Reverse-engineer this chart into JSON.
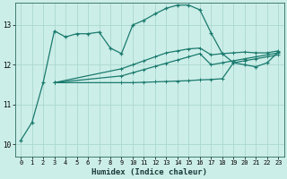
{
  "xlabel": "Humidex (Indice chaleur)",
  "bg_color": "#cceee8",
  "line_color": "#1a7a6e",
  "grid_color": "#aad8d0",
  "xlim": [
    -0.5,
    23.5
  ],
  "ylim": [
    9.7,
    13.55
  ],
  "yticks": [
    10,
    11,
    12,
    13
  ],
  "xticks": [
    0,
    1,
    2,
    3,
    4,
    5,
    6,
    7,
    8,
    9,
    10,
    11,
    12,
    13,
    14,
    15,
    16,
    17,
    18,
    19,
    20,
    21,
    22,
    23
  ],
  "line1_x": [
    0,
    1,
    2,
    3,
    4,
    5,
    6,
    7,
    8,
    9,
    10,
    11,
    12,
    13,
    14,
    15,
    16,
    17,
    18,
    19,
    20,
    21,
    22,
    23
  ],
  "line1_y": [
    10.1,
    10.55,
    11.55,
    12.85,
    12.7,
    12.78,
    12.78,
    12.82,
    12.42,
    12.28,
    13.0,
    13.12,
    13.28,
    13.42,
    13.5,
    13.5,
    13.38,
    12.8,
    12.28,
    12.05,
    12.0,
    11.95,
    12.05,
    12.32
  ],
  "line2_x": [
    3,
    9,
    10,
    11,
    12,
    13,
    14,
    15,
    16,
    17,
    18,
    19,
    20,
    21,
    22,
    23
  ],
  "line2_y": [
    11.55,
    11.55,
    11.55,
    11.56,
    11.57,
    11.58,
    11.59,
    11.6,
    11.62,
    11.63,
    11.65,
    12.05,
    12.1,
    12.15,
    12.2,
    12.25
  ],
  "line3_x": [
    3,
    9,
    10,
    11,
    12,
    13,
    14,
    15,
    16,
    17,
    18,
    19,
    20,
    21,
    22,
    23
  ],
  "line3_y": [
    11.55,
    11.72,
    11.8,
    11.88,
    11.96,
    12.04,
    12.12,
    12.2,
    12.28,
    12.0,
    12.05,
    12.1,
    12.15,
    12.2,
    12.25,
    12.3
  ],
  "line4_x": [
    3,
    9,
    10,
    11,
    12,
    13,
    14,
    15,
    16,
    17,
    18,
    19,
    20,
    21,
    22,
    23
  ],
  "line4_y": [
    11.55,
    11.9,
    12.0,
    12.1,
    12.2,
    12.3,
    12.35,
    12.4,
    12.42,
    12.25,
    12.28,
    12.3,
    12.32,
    12.3,
    12.3,
    12.35
  ]
}
